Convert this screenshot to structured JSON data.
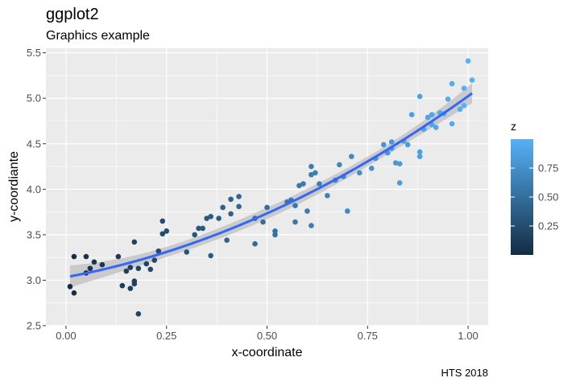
{
  "chart_data": {
    "type": "scatter",
    "title": "ggplot2",
    "subtitle": "Graphics example",
    "caption": "HTS 2018",
    "xlabel": "x-coordinate",
    "ylabel": "y-coordiante",
    "xlim": [
      -0.05,
      1.05
    ],
    "ylim": [
      2.5,
      5.55
    ],
    "x_ticks": [
      0.0,
      0.25,
      0.5,
      0.75,
      1.0
    ],
    "x_tick_labels": [
      "0.00",
      "0.25",
      "0.50",
      "0.75",
      "1.00"
    ],
    "y_ticks": [
      2.5,
      3.0,
      3.5,
      4.0,
      4.5,
      5.0,
      5.5
    ],
    "y_tick_labels": [
      "2.5",
      "3.0",
      "3.5",
      "4.0",
      "4.5",
      "5.0",
      "5.5"
    ],
    "grid": true,
    "legend": {
      "title": "z",
      "placement": "right",
      "breaks": [
        0.25,
        0.5,
        0.75
      ],
      "labels": [
        "0.25",
        "0.50",
        "0.75"
      ],
      "range": [
        0.0,
        1.0
      ],
      "low_color": "#132B43",
      "high_color": "#56B1F7"
    },
    "smooth": {
      "method": "quadratic fit with confidence band",
      "color": "#3366FF",
      "band_color": "#BFBFBF"
    },
    "points": [
      {
        "x": 0.01,
        "y": 2.93
      },
      {
        "x": 0.02,
        "y": 2.86
      },
      {
        "x": 0.02,
        "y": 3.26
      },
      {
        "x": 0.05,
        "y": 3.08
      },
      {
        "x": 0.05,
        "y": 3.26
      },
      {
        "x": 0.06,
        "y": 3.13
      },
      {
        "x": 0.07,
        "y": 3.2
      },
      {
        "x": 0.09,
        "y": 3.17
      },
      {
        "x": 0.13,
        "y": 3.26
      },
      {
        "x": 0.14,
        "y": 2.94
      },
      {
        "x": 0.15,
        "y": 3.1
      },
      {
        "x": 0.16,
        "y": 3.14
      },
      {
        "x": 0.16,
        "y": 2.91
      },
      {
        "x": 0.17,
        "y": 2.99
      },
      {
        "x": 0.17,
        "y": 2.96
      },
      {
        "x": 0.17,
        "y": 3.42
      },
      {
        "x": 0.18,
        "y": 3.13
      },
      {
        "x": 0.18,
        "y": 2.63
      },
      {
        "x": 0.2,
        "y": 3.18
      },
      {
        "x": 0.21,
        "y": 3.12
      },
      {
        "x": 0.22,
        "y": 3.22
      },
      {
        "x": 0.23,
        "y": 3.32
      },
      {
        "x": 0.24,
        "y": 3.51
      },
      {
        "x": 0.24,
        "y": 3.65
      },
      {
        "x": 0.25,
        "y": 3.54
      },
      {
        "x": 0.3,
        "y": 3.31
      },
      {
        "x": 0.32,
        "y": 3.5
      },
      {
        "x": 0.33,
        "y": 3.57
      },
      {
        "x": 0.34,
        "y": 3.57
      },
      {
        "x": 0.35,
        "y": 3.68
      },
      {
        "x": 0.36,
        "y": 3.7
      },
      {
        "x": 0.36,
        "y": 3.27
      },
      {
        "x": 0.38,
        "y": 3.68
      },
      {
        "x": 0.39,
        "y": 3.8
      },
      {
        "x": 0.4,
        "y": 3.44
      },
      {
        "x": 0.41,
        "y": 3.73
      },
      {
        "x": 0.41,
        "y": 3.89
      },
      {
        "x": 0.43,
        "y": 3.92
      },
      {
        "x": 0.43,
        "y": 3.81
      },
      {
        "x": 0.47,
        "y": 3.4
      },
      {
        "x": 0.47,
        "y": 3.68
      },
      {
        "x": 0.49,
        "y": 3.64
      },
      {
        "x": 0.5,
        "y": 3.8
      },
      {
        "x": 0.52,
        "y": 3.5
      },
      {
        "x": 0.52,
        "y": 3.54
      },
      {
        "x": 0.55,
        "y": 3.86
      },
      {
        "x": 0.56,
        "y": 3.88
      },
      {
        "x": 0.57,
        "y": 3.82
      },
      {
        "x": 0.57,
        "y": 3.64
      },
      {
        "x": 0.58,
        "y": 4.04
      },
      {
        "x": 0.59,
        "y": 4.06
      },
      {
        "x": 0.6,
        "y": 3.76
      },
      {
        "x": 0.61,
        "y": 3.6
      },
      {
        "x": 0.61,
        "y": 4.16
      },
      {
        "x": 0.61,
        "y": 4.25
      },
      {
        "x": 0.62,
        "y": 4.18
      },
      {
        "x": 0.63,
        "y": 4.06
      },
      {
        "x": 0.65,
        "y": 3.93
      },
      {
        "x": 0.67,
        "y": 4.1
      },
      {
        "x": 0.68,
        "y": 4.27
      },
      {
        "x": 0.69,
        "y": 4.14
      },
      {
        "x": 0.7,
        "y": 3.76
      },
      {
        "x": 0.71,
        "y": 4.36
      },
      {
        "x": 0.73,
        "y": 4.18
      },
      {
        "x": 0.76,
        "y": 4.23
      },
      {
        "x": 0.77,
        "y": 4.34
      },
      {
        "x": 0.79,
        "y": 4.49
      },
      {
        "x": 0.8,
        "y": 4.4
      },
      {
        "x": 0.81,
        "y": 4.45
      },
      {
        "x": 0.81,
        "y": 4.52
      },
      {
        "x": 0.82,
        "y": 4.29
      },
      {
        "x": 0.83,
        "y": 4.28
      },
      {
        "x": 0.83,
        "y": 4.07
      },
      {
        "x": 0.84,
        "y": 4.53
      },
      {
        "x": 0.85,
        "y": 4.49
      },
      {
        "x": 0.86,
        "y": 4.82
      },
      {
        "x": 0.88,
        "y": 4.36
      },
      {
        "x": 0.88,
        "y": 4.41
      },
      {
        "x": 0.88,
        "y": 5.02
      },
      {
        "x": 0.89,
        "y": 4.66
      },
      {
        "x": 0.9,
        "y": 4.79
      },
      {
        "x": 0.91,
        "y": 4.71
      },
      {
        "x": 0.91,
        "y": 4.82
      },
      {
        "x": 0.92,
        "y": 4.68
      },
      {
        "x": 0.93,
        "y": 4.84
      },
      {
        "x": 0.94,
        "y": 4.83
      },
      {
        "x": 0.95,
        "y": 4.99
      },
      {
        "x": 0.96,
        "y": 4.72
      },
      {
        "x": 0.96,
        "y": 5.16
      },
      {
        "x": 0.98,
        "y": 4.88
      },
      {
        "x": 0.99,
        "y": 4.92
      },
      {
        "x": 0.99,
        "y": 5.11
      },
      {
        "x": 1.0,
        "y": 5.41
      },
      {
        "x": 1.01,
        "y": 5.2
      }
    ]
  }
}
